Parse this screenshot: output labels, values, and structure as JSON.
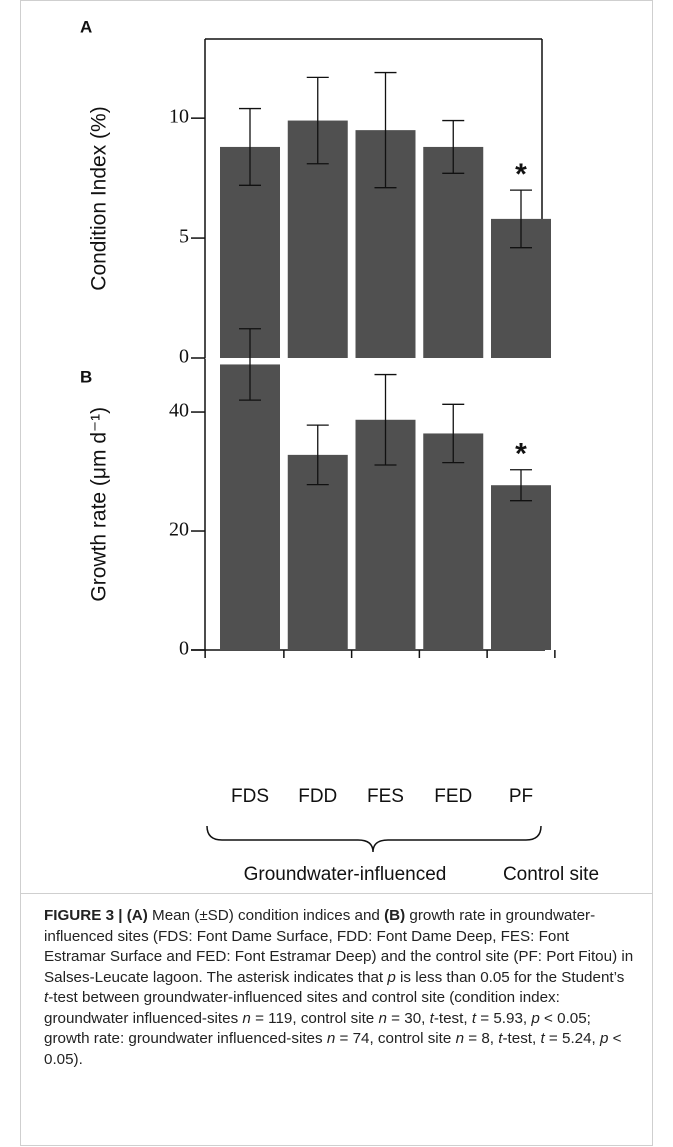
{
  "chart_data": [
    {
      "type": "bar",
      "panel": "A",
      "ylabel": "Condition Index (%)",
      "categories": [
        "FDS",
        "FDD",
        "FES",
        "FED",
        "PF"
      ],
      "values": [
        8.8,
        9.9,
        9.5,
        8.8,
        5.8
      ],
      "errors": [
        1.6,
        1.8,
        2.4,
        1.1,
        1.2
      ],
      "color": "#505050",
      "ylim": [
        0,
        13.3
      ],
      "yticks": [
        0,
        5,
        10
      ],
      "annotations": [
        {
          "category": "PF",
          "text": "*"
        }
      ]
    },
    {
      "type": "bar",
      "panel": "B",
      "ylabel": "Growth rate (μm d⁻¹)",
      "categories": [
        "FDS",
        "FDD",
        "FES",
        "FED",
        "PF"
      ],
      "values": [
        48,
        32.8,
        38.7,
        36.4,
        27.7
      ],
      "errors": [
        6,
        5,
        7.6,
        4.9,
        2.6
      ],
      "color": "#505050",
      "ylim": [
        0,
        49
      ],
      "yticks": [
        0,
        20,
        40
      ],
      "annotations": [
        {
          "category": "PF",
          "text": "*"
        }
      ],
      "groups": [
        "Groundwater-influenced",
        "Control site"
      ]
    }
  ],
  "caption": {
    "parts": [
      {
        "text": "FIGURE 3 | (A)",
        "style": "bold"
      },
      {
        "text": " Mean (±SD) condition indices and ",
        "style": "normal"
      },
      {
        "text": "(B)",
        "style": "bold"
      },
      {
        "text": " growth rate in groundwater-influenced sites (FDS: Font Dame Surface, FDD: Font Dame Deep, FES: Font Estramar Surface and FED: Font Estramar Deep) and the control site (PF: Port Fitou) in Salses-Leucate lagoon. The asterisk indicates that ",
        "style": "normal"
      },
      {
        "text": "p",
        "style": "italic"
      },
      {
        "text": " is less than 0.05 for the Student’s ",
        "style": "normal"
      },
      {
        "text": "t",
        "style": "italic"
      },
      {
        "text": "-test between groundwater-influenced sites and control site (condition index: groundwater influenced-sites ",
        "style": "normal"
      },
      {
        "text": "n",
        "style": "italic"
      },
      {
        "text": " = 119, control site ",
        "style": "normal"
      },
      {
        "text": "n",
        "style": "italic"
      },
      {
        "text": " = 30, ",
        "style": "normal"
      },
      {
        "text": "t",
        "style": "italic"
      },
      {
        "text": "-test, ",
        "style": "normal"
      },
      {
        "text": "t",
        "style": "italic"
      },
      {
        "text": " = 5.93, ",
        "style": "normal"
      },
      {
        "text": "p",
        "style": "italic"
      },
      {
        "text": " < 0.05; growth rate: groundwater influenced-sites ",
        "style": "normal"
      },
      {
        "text": "n",
        "style": "italic"
      },
      {
        "text": " = 74, control site ",
        "style": "normal"
      },
      {
        "text": "n",
        "style": "italic"
      },
      {
        "text": " = 8, ",
        "style": "normal"
      },
      {
        "text": "t",
        "style": "italic"
      },
      {
        "text": "-test, ",
        "style": "normal"
      },
      {
        "text": "t",
        "style": "italic"
      },
      {
        "text": " = 5.24, ",
        "style": "normal"
      },
      {
        "text": "p",
        "style": "italic"
      },
      {
        "text": " < 0.05).",
        "style": "normal"
      }
    ]
  }
}
